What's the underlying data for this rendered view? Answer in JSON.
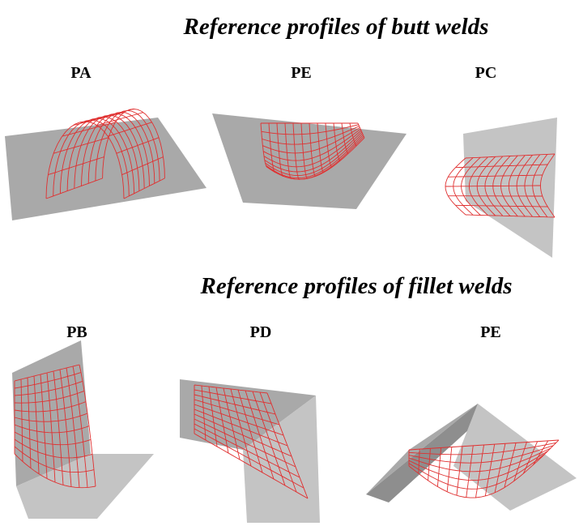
{
  "sections": [
    {
      "title": "Reference profiles of butt welds",
      "items": [
        {
          "label": "PA"
        },
        {
          "label": "PE"
        },
        {
          "label": "PC"
        }
      ]
    },
    {
      "title": "Reference profiles of fillet welds",
      "items": [
        {
          "label": "PB"
        },
        {
          "label": "PD"
        },
        {
          "label": "PE"
        }
      ]
    }
  ]
}
